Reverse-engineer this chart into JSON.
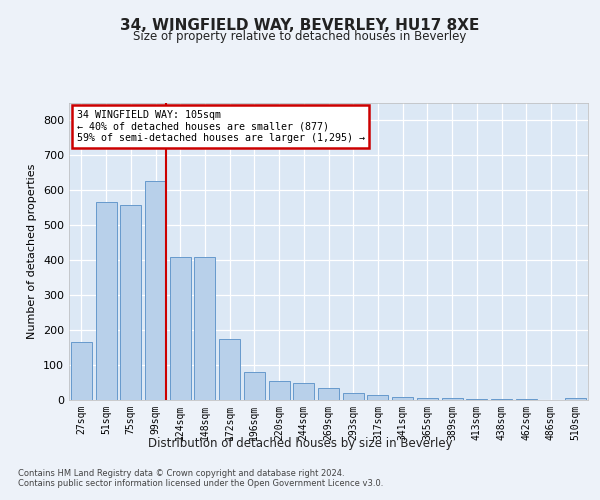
{
  "title": "34, WINGFIELD WAY, BEVERLEY, HU17 8XE",
  "subtitle": "Size of property relative to detached houses in Beverley",
  "xlabel": "Distribution of detached houses by size in Beverley",
  "ylabel": "Number of detached properties",
  "bar_color": "#b8d0ea",
  "bar_edge_color": "#6699cc",
  "background_color": "#dce8f5",
  "fig_background_color": "#edf2f9",
  "grid_color": "#ffffff",
  "vline_color": "#cc0000",
  "categories": [
    "27sqm",
    "51sqm",
    "75sqm",
    "99sqm",
    "124sqm",
    "148sqm",
    "172sqm",
    "196sqm",
    "220sqm",
    "244sqm",
    "269sqm",
    "293sqm",
    "317sqm",
    "341sqm",
    "365sqm",
    "389sqm",
    "413sqm",
    "438sqm",
    "462sqm",
    "486sqm",
    "510sqm"
  ],
  "values": [
    165,
    565,
    558,
    625,
    410,
    408,
    175,
    80,
    55,
    50,
    35,
    20,
    15,
    10,
    5,
    5,
    3,
    3,
    2,
    1,
    5
  ],
  "property_bar_index": 3,
  "annotation_line1": "34 WINGFIELD WAY: 105sqm",
  "annotation_line2": "← 40% of detached houses are smaller (877)",
  "annotation_line3": "59% of semi-detached houses are larger (1,295) →",
  "ylim": [
    0,
    850
  ],
  "yticks": [
    0,
    100,
    200,
    300,
    400,
    500,
    600,
    700,
    800
  ],
  "footnote1": "Contains HM Land Registry data © Crown copyright and database right 2024.",
  "footnote2": "Contains public sector information licensed under the Open Government Licence v3.0."
}
